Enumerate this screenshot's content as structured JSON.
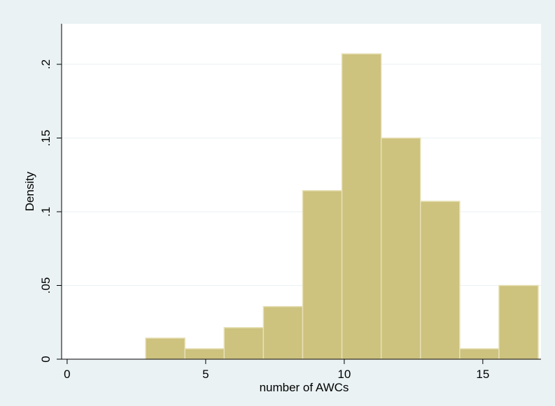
{
  "colors": {
    "background": "#eaf2f3",
    "plot_background": "#ffffff",
    "bar_fill": "#cdc27e",
    "bar_stroke": "#e7e0b6",
    "grid": "#eaf2f3",
    "axis": "#000000"
  },
  "chart_data": {
    "type": "bar",
    "xlabel": "number of AWCs",
    "ylabel": "Density",
    "xlim": [
      -0.2,
      17.1
    ],
    "ylim": [
      0,
      0.2275
    ],
    "x_ticks": [
      0,
      5,
      10,
      15
    ],
    "x_tick_labels": [
      "0",
      "5",
      "10",
      "15"
    ],
    "y_ticks": [
      0,
      0.05,
      0.1,
      0.15,
      0.2
    ],
    "y_tick_labels": [
      "0",
      ".05",
      ".1",
      ".15",
      ".2"
    ],
    "grid": true,
    "bin_width": 1.4167,
    "bins": [
      {
        "start": 0.0,
        "end": 1.4167,
        "density": 0.0
      },
      {
        "start": 1.4167,
        "end": 2.8333,
        "density": 0.0
      },
      {
        "start": 2.8333,
        "end": 4.25,
        "density": 0.0143
      },
      {
        "start": 4.25,
        "end": 5.6667,
        "density": 0.0071
      },
      {
        "start": 5.6667,
        "end": 7.0833,
        "density": 0.0214
      },
      {
        "start": 7.0833,
        "end": 8.5,
        "density": 0.0357
      },
      {
        "start": 8.5,
        "end": 9.9167,
        "density": 0.1143
      },
      {
        "start": 9.9167,
        "end": 11.3333,
        "density": 0.2071
      },
      {
        "start": 11.3333,
        "end": 12.75,
        "density": 0.15
      },
      {
        "start": 12.75,
        "end": 14.1667,
        "density": 0.1071
      },
      {
        "start": 14.1667,
        "end": 15.5833,
        "density": 0.0071
      },
      {
        "start": 15.5833,
        "end": 17.0,
        "density": 0.05
      }
    ]
  }
}
